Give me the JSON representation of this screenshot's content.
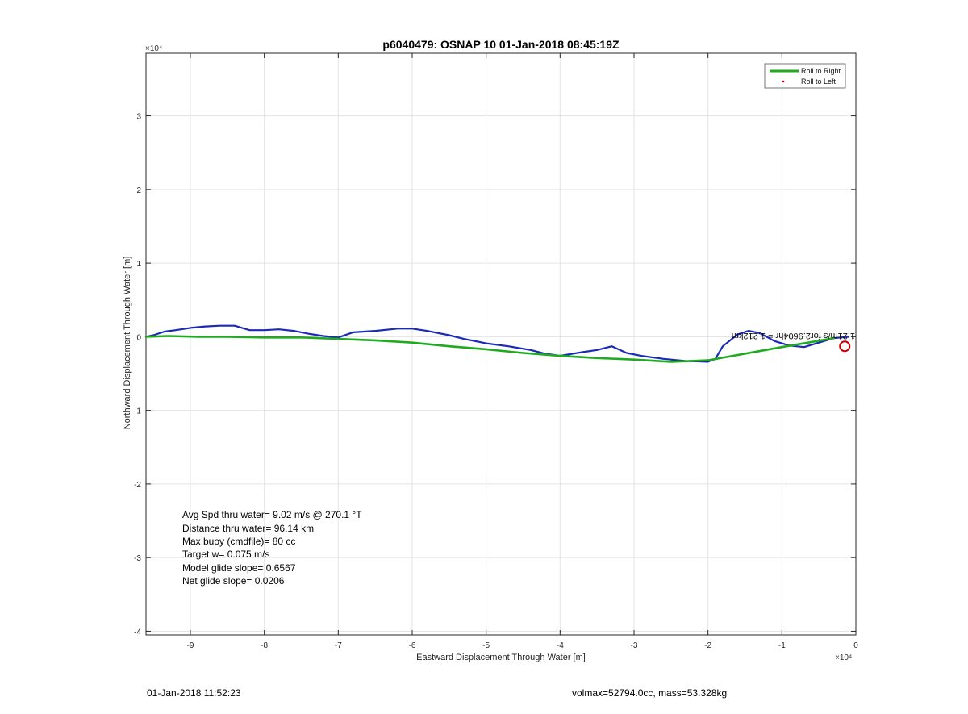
{
  "chart_data": {
    "type": "line",
    "title": "p6040479: OSNAP 10 01-Jan-2018 08:45:19Z",
    "xlabel": "Eastward Displacement Through Water [m]",
    "ylabel": "Northward Displacement Through Water [m]",
    "x_multiplier": "×10⁴",
    "y_multiplier": "×10⁴",
    "xlim": [
      -9.6,
      0
    ],
    "ylim": [
      -4.05,
      3.85
    ],
    "xticks": [
      -9,
      -8,
      -7,
      -6,
      -5,
      -4,
      -3,
      -2,
      -1,
      0
    ],
    "yticks": [
      -4,
      -3,
      -2,
      -1,
      0,
      1,
      2,
      3
    ],
    "grid": true,
    "legend": {
      "placement": "top-right",
      "entries": [
        "Roll to Right",
        "Roll to Left"
      ]
    },
    "series": [
      {
        "name": "Roll to Right",
        "color": "#1faa1f",
        "x": [
          -9.6,
          -9.3,
          -8.9,
          -8.5,
          -8.0,
          -7.5,
          -7.0,
          -6.5,
          -6.0,
          -5.5,
          -5.0,
          -4.5,
          -4.0,
          -3.5,
          -3.0,
          -2.5,
          -2.0,
          -1.0,
          -0.3
        ],
        "y": [
          0.0,
          0.01,
          0.0,
          0.0,
          -0.01,
          -0.01,
          -0.03,
          -0.05,
          -0.08,
          -0.13,
          -0.17,
          -0.22,
          -0.26,
          -0.29,
          -0.31,
          -0.34,
          -0.32,
          -0.14,
          -0.02
        ]
      },
      {
        "name": "Trajectory (blue)",
        "color": "#1c2ab8",
        "x": [
          -9.6,
          -9.5,
          -9.35,
          -9.2,
          -9.0,
          -8.8,
          -8.6,
          -8.4,
          -8.2,
          -8.0,
          -7.8,
          -7.6,
          -7.4,
          -7.2,
          -7.0,
          -6.8,
          -6.5,
          -6.2,
          -6.0,
          -5.8,
          -5.5,
          -5.3,
          -5.0,
          -4.7,
          -4.4,
          -4.2,
          -4.0,
          -3.7,
          -3.5,
          -3.3,
          -3.1,
          -2.9,
          -2.6,
          -2.3,
          -2.0,
          -1.9,
          -1.8,
          -1.6,
          -1.45,
          -1.3,
          -1.1,
          -0.9,
          -0.7,
          -0.5,
          -0.3,
          -0.1
        ],
        "y": [
          0.0,
          0.02,
          0.07,
          0.09,
          0.12,
          0.14,
          0.15,
          0.15,
          0.09,
          0.09,
          0.1,
          0.08,
          0.04,
          0.01,
          -0.01,
          0.06,
          0.08,
          0.11,
          0.11,
          0.08,
          0.02,
          -0.03,
          -0.09,
          -0.13,
          -0.18,
          -0.23,
          -0.26,
          -0.21,
          -0.18,
          -0.13,
          -0.22,
          -0.26,
          -0.3,
          -0.33,
          -0.34,
          -0.3,
          -0.13,
          0.03,
          0.08,
          0.05,
          -0.06,
          -0.12,
          -0.14,
          -0.08,
          -0.02,
          0.0
        ]
      }
    ],
    "markers": [
      {
        "x": -0.15,
        "y": -0.13,
        "color": "#cc0000",
        "shape": "open-circle"
      }
    ],
    "end_label": "1.21m/s for2.9604hr = 1.212km",
    "annotations": [
      "Avg Spd thru water=  9.02 m/s @ 270.1 °T",
      "Distance thru water= 96.14 km",
      "Max buoy (cmdfile)= 80 cc",
      "Target w= 0.075 m/s",
      "Model glide slope= 0.6567",
      "Net glide slope= 0.0206"
    ]
  },
  "footer": {
    "left": "01-Jan-2018 11:52:23",
    "right": "volmax=52794.0cc, mass=53.328kg"
  }
}
